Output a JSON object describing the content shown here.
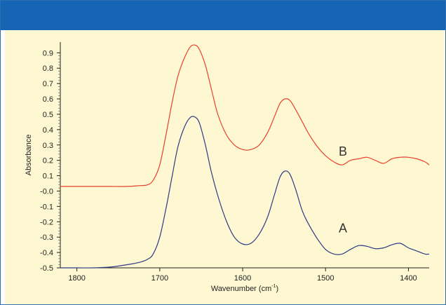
{
  "chart_data": {
    "type": "line",
    "xlabel": "Wavenumber (cm",
    "xlabel_sup": "-1",
    "xlabel_end": ")",
    "ylabel": "Absorbance",
    "xlim": [
      1820,
      1375
    ],
    "ylim": [
      -0.5,
      0.97
    ],
    "x_reversed": true,
    "grid": false,
    "legend": "none",
    "xticks": [
      1800,
      1700,
      1600,
      1500,
      1400
    ],
    "xtick_labels": [
      "1800",
      "1700",
      "1600",
      "1500",
      "1400"
    ],
    "yticks": [
      0.9,
      0.8,
      0.7,
      0.6,
      0.5,
      0.4,
      0.3,
      0.2,
      0.1,
      0.0,
      -0.1,
      -0.2,
      -0.3,
      -0.4,
      -0.5
    ],
    "ytick_labels": [
      "0.9",
      "0.8",
      "0.7",
      "0.6",
      "0.5",
      "0.4",
      "0.3",
      "0.2",
      "0.1",
      "-0.0",
      "-0.1",
      "-0.2",
      "-0.3",
      "-0.4",
      "-0.5"
    ],
    "series": [
      {
        "name": "B",
        "color": "#e8432b",
        "x": [
          1820,
          1800,
          1780,
          1760,
          1740,
          1725,
          1715,
          1708,
          1700,
          1692,
          1685,
          1678,
          1670,
          1663,
          1657,
          1652,
          1645,
          1638,
          1630,
          1620,
          1610,
          1600,
          1590,
          1580,
          1570,
          1562,
          1555,
          1549,
          1543,
          1536,
          1528,
          1520,
          1510,
          1500,
          1490,
          1480,
          1470,
          1460,
          1450,
          1440,
          1430,
          1420,
          1410,
          1400,
          1390,
          1380,
          1375
        ],
        "y": [
          0.03,
          0.03,
          0.03,
          0.03,
          0.03,
          0.035,
          0.04,
          0.07,
          0.17,
          0.38,
          0.58,
          0.75,
          0.87,
          0.94,
          0.95,
          0.92,
          0.82,
          0.67,
          0.5,
          0.37,
          0.3,
          0.27,
          0.27,
          0.3,
          0.38,
          0.48,
          0.57,
          0.6,
          0.59,
          0.53,
          0.45,
          0.37,
          0.29,
          0.23,
          0.19,
          0.17,
          0.2,
          0.21,
          0.22,
          0.2,
          0.18,
          0.21,
          0.22,
          0.22,
          0.21,
          0.19,
          0.17
        ]
      },
      {
        "name": "A",
        "color": "#2f3a85",
        "x": [
          1820,
          1800,
          1780,
          1760,
          1740,
          1725,
          1715,
          1708,
          1700,
          1692,
          1685,
          1678,
          1670,
          1663,
          1657,
          1652,
          1645,
          1638,
          1630,
          1620,
          1610,
          1600,
          1590,
          1580,
          1570,
          1562,
          1555,
          1549,
          1543,
          1536,
          1528,
          1520,
          1510,
          1500,
          1490,
          1480,
          1470,
          1460,
          1450,
          1440,
          1430,
          1420,
          1410,
          1400,
          1390,
          1380,
          1375
        ],
        "y": [
          -0.5,
          -0.5,
          -0.5,
          -0.495,
          -0.48,
          -0.465,
          -0.445,
          -0.41,
          -0.3,
          -0.1,
          0.1,
          0.29,
          0.42,
          0.48,
          0.48,
          0.44,
          0.3,
          0.13,
          -0.03,
          -0.19,
          -0.3,
          -0.345,
          -0.34,
          -0.28,
          -0.17,
          -0.03,
          0.09,
          0.13,
          0.11,
          0.01,
          -0.13,
          -0.22,
          -0.31,
          -0.38,
          -0.41,
          -0.41,
          -0.38,
          -0.355,
          -0.36,
          -0.375,
          -0.37,
          -0.35,
          -0.34,
          -0.37,
          -0.39,
          -0.41,
          -0.41
        ]
      }
    ],
    "annotations": [
      {
        "text": "B",
        "x": 1479,
        "y": 0.23
      },
      {
        "text": "A",
        "x": 1479,
        "y": -0.27
      }
    ]
  }
}
